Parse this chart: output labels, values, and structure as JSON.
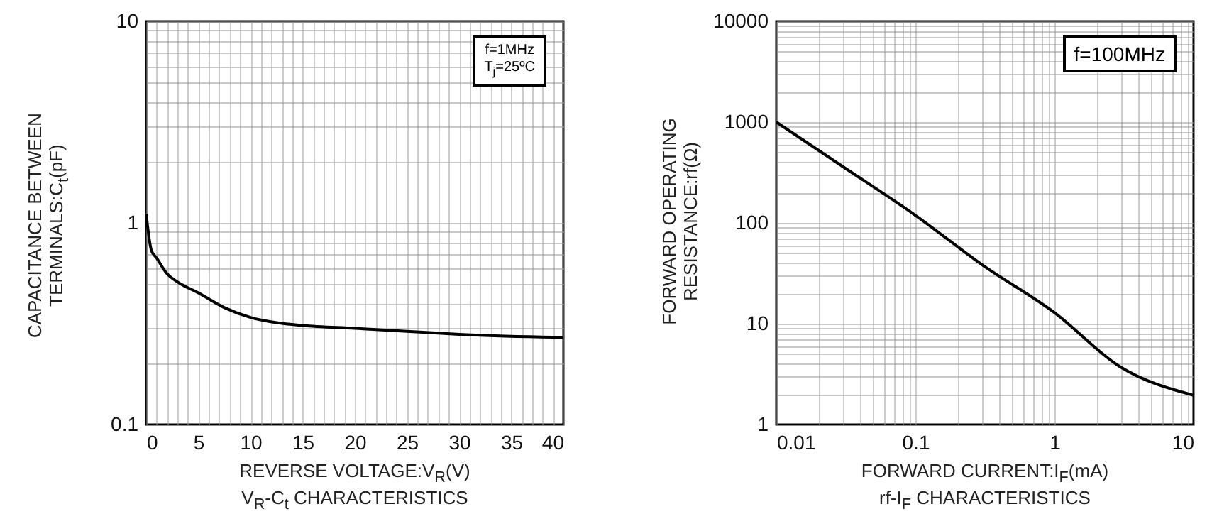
{
  "chart_data": [
    {
      "type": "line",
      "title": "V$_{R}$-C$_{t}$ CHARACTERISTICS",
      "xlabel": "REVERSE VOLTAGE:V$_{R}$(V)",
      "ylabel": "CAPACITANCE BETWEEN TERMINALS:C$_{t}$(pF)",
      "annotations": [
        "f=1MHz",
        "T$_{j}$=25ºC"
      ],
      "x": [
        0,
        0.5,
        1,
        2,
        3,
        5,
        7.5,
        10,
        12.5,
        15,
        20,
        25,
        30,
        40
      ],
      "values": [
        1.11,
        0.73,
        0.67,
        0.56,
        0.51,
        0.45,
        0.38,
        0.34,
        0.32,
        0.31,
        0.3,
        0.29,
        0.28,
        0.27
      ],
      "color": "#000000",
      "log": "y",
      "xlim": [
        0,
        40
      ],
      "ylim": [
        0.1,
        10
      ],
      "grid": true,
      "xticks": [
        0,
        {
          "value": 1,
          "label": null
        },
        {
          "value": 2,
          "label": null
        },
        {
          "value": 3,
          "label": null
        },
        {
          "value": 4,
          "label": null
        },
        5,
        {
          "value": 6,
          "label": null
        },
        {
          "value": 7,
          "label": null
        },
        {
          "value": 8,
          "label": null
        },
        {
          "value": 9,
          "label": null
        },
        10,
        {
          "value": 11,
          "label": null
        },
        {
          "value": 12,
          "label": null
        },
        {
          "value": 13,
          "label": null
        },
        {
          "value": 14,
          "label": null
        },
        15,
        {
          "value": 16,
          "label": null
        },
        {
          "value": 17,
          "label": null
        },
        {
          "value": 18,
          "label": null
        },
        {
          "value": 19,
          "label": null
        },
        20,
        {
          "value": 21,
          "label": null
        },
        {
          "value": 22,
          "label": null
        },
        {
          "value": 23,
          "label": null
        },
        {
          "value": 24,
          "label": null
        },
        25,
        {
          "value": 26,
          "label": null
        },
        {
          "value": 27,
          "label": null
        },
        {
          "value": 28,
          "label": null
        },
        {
          "value": 29,
          "label": null
        },
        30,
        {
          "value": 31,
          "label": null
        },
        {
          "value": 32,
          "label": null
        },
        {
          "value": 33,
          "label": null
        },
        {
          "value": 34,
          "label": null
        },
        35,
        {
          "value": 36,
          "label": null
        },
        {
          "value": 37,
          "label": null
        },
        {
          "value": 38,
          "label": null
        },
        {
          "value": 39,
          "label": null
        },
        40
      ],
      "yticks": [
        0.1,
        {
          "value": 0.2,
          "label": null
        },
        {
          "value": 0.3,
          "label": null
        },
        {
          "value": 0.4,
          "label": null
        },
        {
          "value": 0.5,
          "label": null
        },
        {
          "value": 0.6,
          "label": null
        },
        {
          "value": 0.7,
          "label": null
        },
        {
          "value": 0.8,
          "label": null
        },
        {
          "value": 0.9,
          "label": null
        },
        1,
        {
          "value": 2,
          "label": null
        },
        {
          "value": 3,
          "label": null
        },
        {
          "value": 4,
          "label": null
        },
        {
          "value": 5,
          "label": null
        },
        {
          "value": 6,
          "label": null
        },
        {
          "value": 7,
          "label": null
        },
        {
          "value": 8,
          "label": null
        },
        {
          "value": 9,
          "label": null
        },
        10
      ]
    },
    {
      "type": "line",
      "title": "rf-I$_{F}$ CHARACTERISTICS",
      "xlabel": "FORWARD CURRENT:I$_{F}$(mA)",
      "ylabel": "FORWARD OPERATING RESISTANCE:rf(Ω)",
      "annotations": [
        "f=100MHz"
      ],
      "x": [
        0.01,
        0.03,
        0.1,
        0.3,
        1,
        3,
        10
      ],
      "values": [
        1000,
        363,
        119,
        38.7,
        12.9,
        3.7,
        1.95
      ],
      "color": "#000000",
      "log": "xy",
      "xlim": [
        0.01,
        10
      ],
      "ylim": [
        1,
        10000
      ],
      "grid": true,
      "xticks": [
        0.01,
        {
          "value": 0.02,
          "label": null
        },
        {
          "value": 0.03,
          "label": null
        },
        {
          "value": 0.04,
          "label": null
        },
        {
          "value": 0.05,
          "label": null
        },
        {
          "value": 0.06,
          "label": null
        },
        {
          "value": 0.07,
          "label": null
        },
        {
          "value": 0.08,
          "label": null
        },
        {
          "value": 0.09,
          "label": null
        },
        0.1,
        {
          "value": 0.2,
          "label": null
        },
        {
          "value": 0.3,
          "label": null
        },
        {
          "value": 0.4,
          "label": null
        },
        {
          "value": 0.5,
          "label": null
        },
        {
          "value": 0.6,
          "label": null
        },
        {
          "value": 0.7,
          "label": null
        },
        {
          "value": 0.8,
          "label": null
        },
        {
          "value": 0.9,
          "label": null
        },
        1,
        {
          "value": 2,
          "label": null
        },
        {
          "value": 3,
          "label": null
        },
        {
          "value": 4,
          "label": null
        },
        {
          "value": 5,
          "label": null
        },
        {
          "value": 6,
          "label": null
        },
        {
          "value": 7,
          "label": null
        },
        {
          "value": 8,
          "label": null
        },
        {
          "value": 9,
          "label": null
        },
        10
      ],
      "yticks": [
        1,
        {
          "value": 2,
          "label": null
        },
        {
          "value": 3,
          "label": null
        },
        {
          "value": 4,
          "label": null
        },
        {
          "value": 5,
          "label": null
        },
        {
          "value": 6,
          "label": null
        },
        {
          "value": 7,
          "label": null
        },
        {
          "value": 8,
          "label": null
        },
        {
          "value": 9,
          "label": null
        },
        10,
        {
          "value": 20,
          "label": null
        },
        {
          "value": 30,
          "label": null
        },
        {
          "value": 40,
          "label": null
        },
        {
          "value": 50,
          "label": null
        },
        {
          "value": 60,
          "label": null
        },
        {
          "value": 70,
          "label": null
        },
        {
          "value": 80,
          "label": null
        },
        {
          "value": 90,
          "label": null
        },
        100,
        {
          "value": 200,
          "label": null
        },
        {
          "value": 300,
          "label": null
        },
        {
          "value": 400,
          "label": null
        },
        {
          "value": 500,
          "label": null
        },
        {
          "value": 600,
          "label": null
        },
        {
          "value": 700,
          "label": null
        },
        {
          "value": 800,
          "label": null
        },
        {
          "value": 900,
          "label": null
        },
        1000,
        {
          "value": 2000,
          "label": null
        },
        {
          "value": 3000,
          "label": null
        },
        {
          "value": 4000,
          "label": null
        },
        {
          "value": 5000,
          "label": null
        },
        {
          "value": 6000,
          "label": null
        },
        {
          "value": 7000,
          "label": null
        },
        {
          "value": 8000,
          "label": null
        },
        {
          "value": 9000,
          "label": null
        },
        10000
      ]
    }
  ]
}
